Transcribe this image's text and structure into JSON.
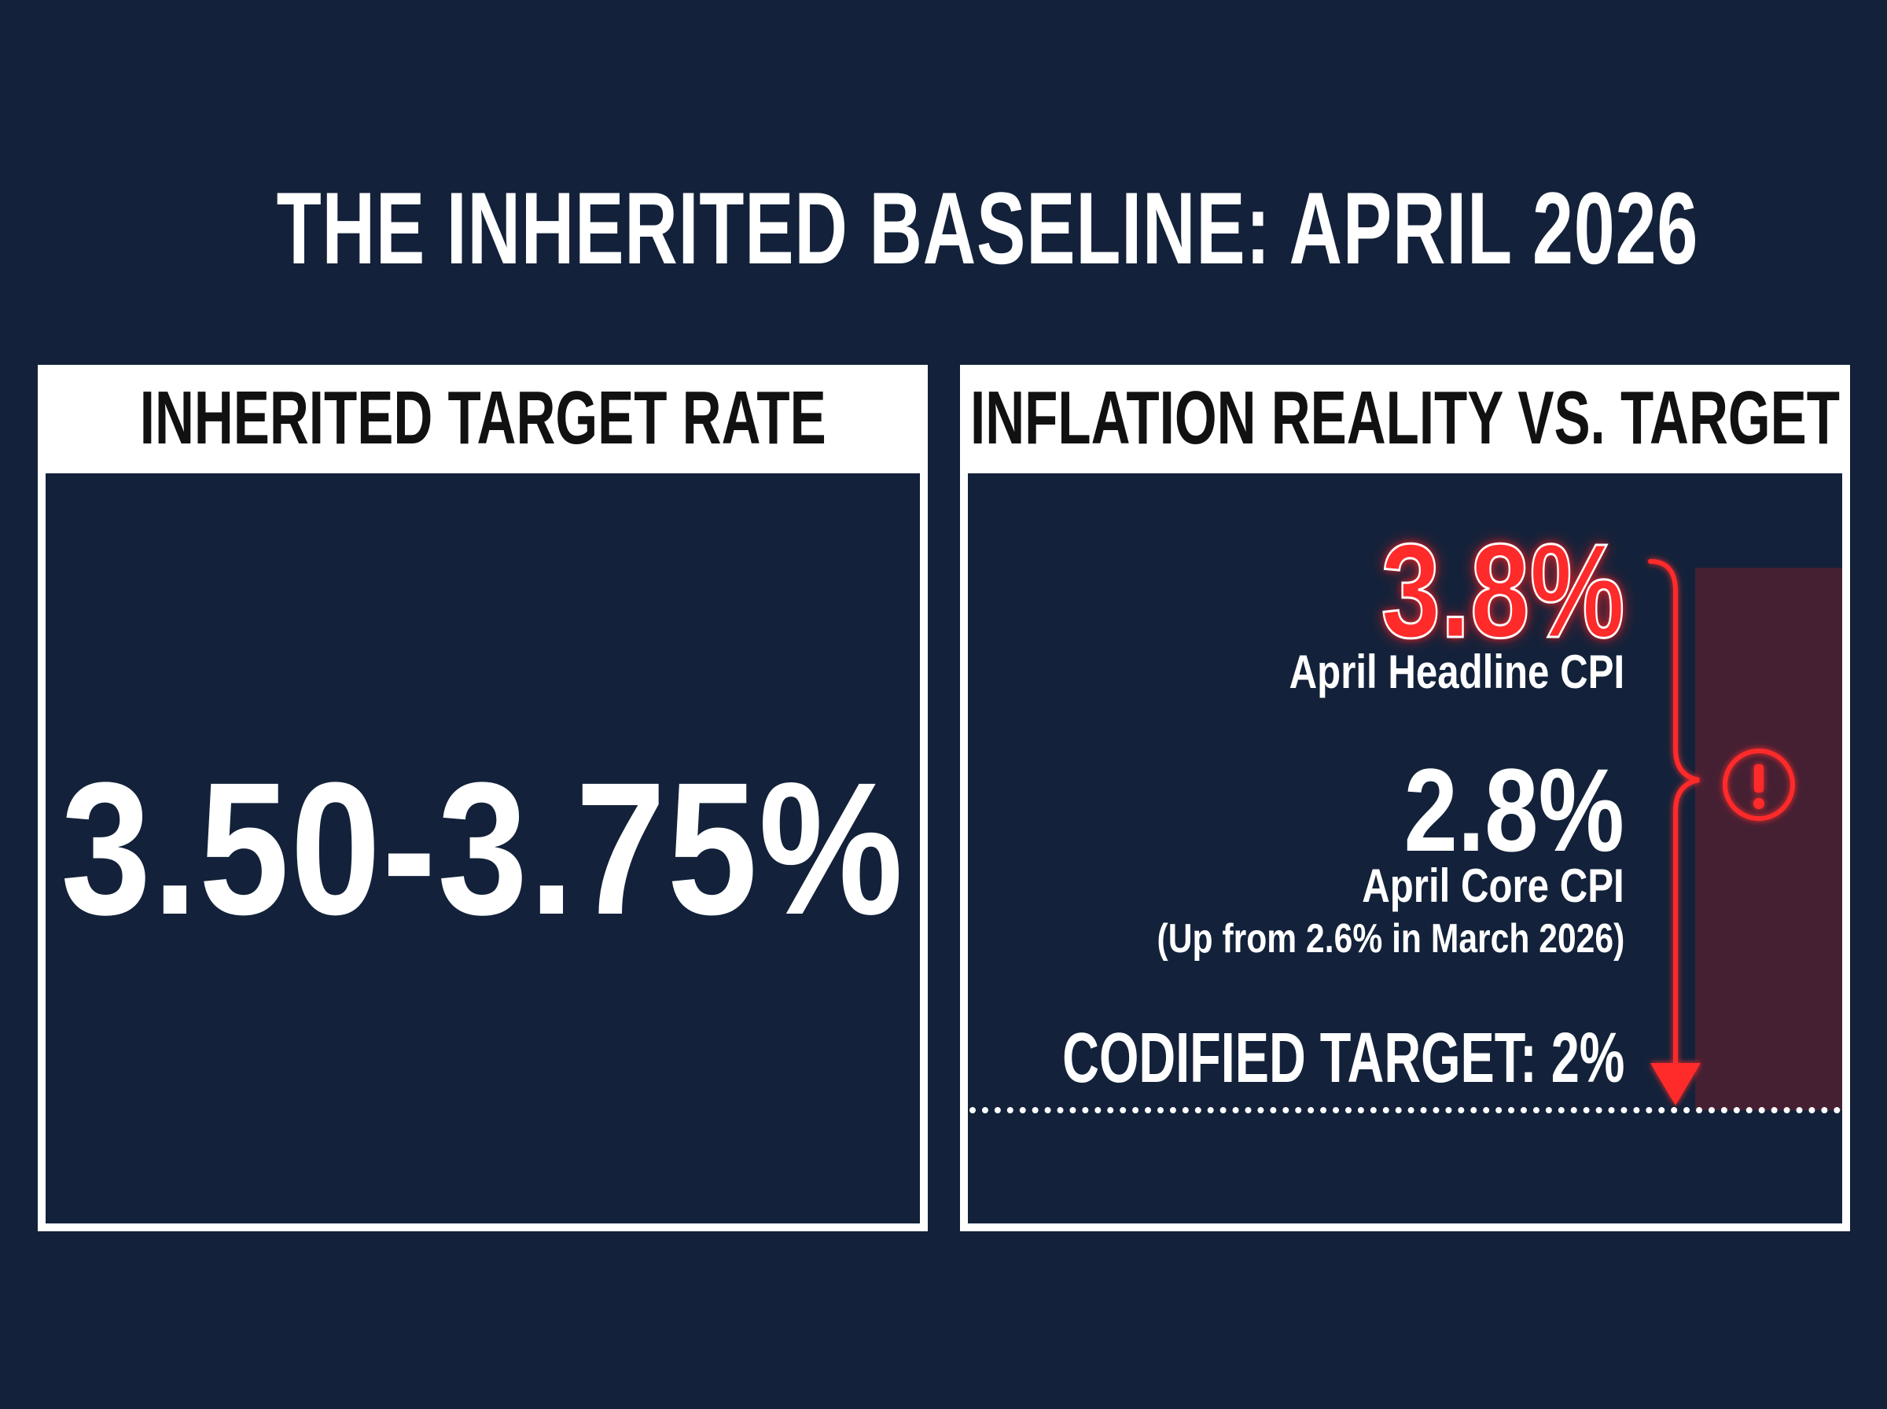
{
  "title": "THE INHERITED BASELINE: APRIL 2026",
  "left_panel": {
    "header": "INHERITED TARGET RATE",
    "value": "3.50-3.75%"
  },
  "right_panel": {
    "header": "INFLATION REALITY VS. TARGET",
    "headline_cpi": {
      "value": "3.8%",
      "label": "April Headline CPI"
    },
    "core_cpi": {
      "value": "2.8%",
      "label": "April Core CPI",
      "note": "(Up from 2.6% in March 2026)"
    },
    "target": {
      "label": "CODIFIED TARGET: 2%"
    },
    "gap_icon": "exclamation-circle-icon"
  },
  "colors": {
    "background": "#13223a",
    "panel_border": "#ffffff",
    "alert_red": "#ff2a2a"
  }
}
